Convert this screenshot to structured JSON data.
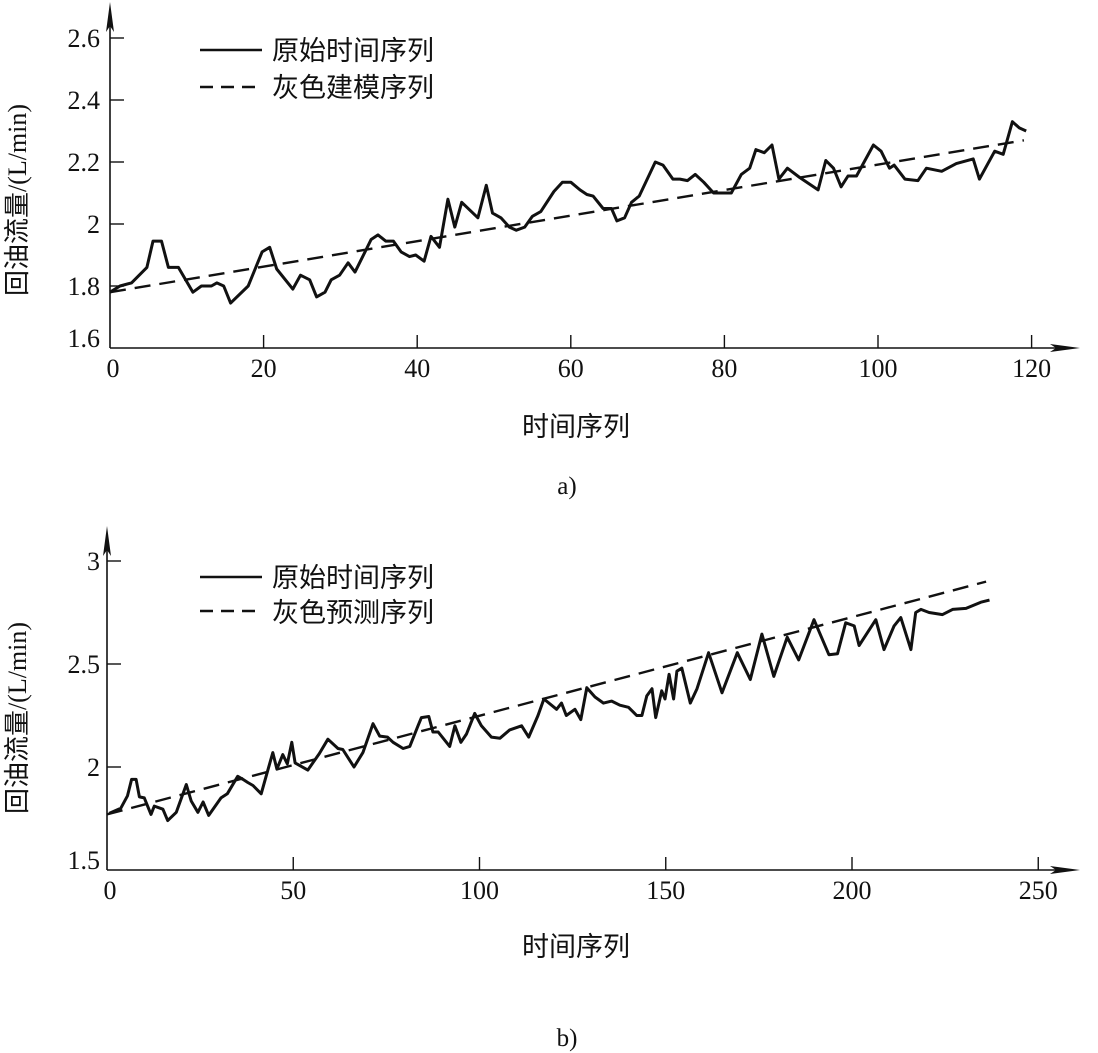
{
  "chart_data": [
    {
      "id": "a",
      "type": "line",
      "caption": "a)",
      "xlabel": "时间序列",
      "ylabel": "回油流量/(L/min)",
      "xlim": [
        0,
        120
      ],
      "ylim": [
        1.6,
        2.6
      ],
      "xticks": [
        0,
        20,
        40,
        60,
        80,
        100,
        120
      ],
      "yticks": [
        1.6,
        1.8,
        2.0,
        2.2,
        2.4,
        2.6
      ],
      "xtick_labels": [
        "0",
        "20",
        "40",
        "60",
        "80",
        "100",
        "120"
      ],
      "ytick_labels": [
        "1.6",
        "1.8",
        "2",
        "2.2",
        "2.4",
        "2.6"
      ],
      "legend_position": "top-left",
      "series": [
        {
          "name": "原始时间序列",
          "style": "solid",
          "x": [
            0,
            1.3,
            2.8,
            4.8,
            5.6,
            6.7,
            7.6,
            8.9,
            10.8,
            11.9,
            13.2,
            13.9,
            14.8,
            15.7,
            18,
            19.8,
            20.8,
            21.7,
            23.8,
            24.8,
            26,
            26.9,
            28,
            28.8,
            29.9,
            31,
            31.9,
            32.9,
            34,
            34.9,
            35.9,
            36.9,
            37.9,
            39,
            39.8,
            40.9,
            41.8,
            42.9,
            44,
            44.9,
            45.8,
            47.9,
            49,
            49.8,
            50.9,
            52,
            52.9,
            54,
            55,
            56.1,
            57.8,
            58.9,
            60,
            61.2,
            62.1,
            62.9,
            64.2,
            65.3,
            66,
            67,
            67.9,
            68.9,
            71,
            72,
            73.3,
            74.2,
            75.2,
            76.2,
            77.3,
            78.6,
            79.6,
            80.9,
            82.2,
            83.3,
            84.1,
            85.2,
            86.2,
            87.1,
            88.2,
            89.8,
            92.2,
            93.2,
            94.2,
            95.2,
            96.1,
            97.2,
            99.4,
            100.4,
            101.5,
            102.1,
            103.5,
            105.2,
            106.3,
            108.3,
            110.2,
            112.4,
            113.2,
            115.2,
            116.3,
            117.5,
            118.4,
            119.3
          ],
          "y": [
            1.78,
            1.8,
            1.81,
            1.86,
            1.945,
            1.945,
            1.86,
            1.86,
            1.78,
            1.8,
            1.8,
            1.81,
            1.8,
            1.745,
            1.8,
            1.91,
            1.925,
            1.855,
            1.79,
            1.835,
            1.82,
            1.765,
            1.78,
            1.82,
            1.835,
            1.875,
            1.845,
            1.895,
            1.95,
            1.965,
            1.945,
            1.945,
            1.91,
            1.895,
            1.9,
            1.88,
            1.96,
            1.925,
            2.08,
            1.99,
            2.07,
            2.02,
            2.125,
            2.035,
            2.02,
            1.99,
            1.98,
            1.99,
            2.025,
            2.04,
            2.105,
            2.135,
            2.135,
            2.11,
            2.095,
            2.09,
            2.05,
            2.05,
            2.01,
            2.02,
            2.07,
            2.09,
            2.2,
            2.19,
            2.145,
            2.145,
            2.14,
            2.16,
            2.135,
            2.1,
            2.1,
            2.1,
            2.16,
            2.18,
            2.24,
            2.23,
            2.255,
            2.145,
            2.18,
            2.15,
            2.11,
            2.205,
            2.18,
            2.12,
            2.155,
            2.155,
            2.255,
            2.235,
            2.18,
            2.19,
            2.145,
            2.14,
            2.18,
            2.17,
            2.195,
            2.21,
            2.145,
            2.235,
            2.225,
            2.33,
            2.31,
            2.3
          ]
        },
        {
          "name": "灰色建模序列",
          "style": "dashed",
          "x": [
            0,
            119
          ],
          "y": [
            1.78,
            2.27
          ]
        }
      ]
    },
    {
      "id": "b",
      "type": "line",
      "caption": "b)",
      "xlabel": "时间序列",
      "ylabel": "回油流量/(L/min)",
      "xlim": [
        0,
        250
      ],
      "ylim": [
        1.5,
        3.0
      ],
      "xticks": [
        0,
        50,
        100,
        150,
        200,
        250
      ],
      "yticks": [
        1.5,
        2.0,
        2.5,
        3.0
      ],
      "xtick_labels": [
        "0",
        "50",
        "100",
        "150",
        "200",
        "250"
      ],
      "ytick_labels": [
        "1.5",
        "2",
        "2.5",
        "3"
      ],
      "legend_position": "top-left",
      "series": [
        {
          "name": "原始时间序列",
          "style": "solid",
          "x": [
            0.6,
            3.7,
            5.5,
            6.6,
            7.8,
            8.7,
            10,
            11.8,
            12.7,
            15,
            16.3,
            18.6,
            21.3,
            22.6,
            24.4,
            25.8,
            27.3,
            30.6,
            32.3,
            35.1,
            36.5,
            37.8,
            39.2,
            41.4,
            42.7,
            44.5,
            45.6,
            47.2,
            48.4,
            49.6,
            50.5,
            53.9,
            57,
            59.3,
            62,
            63.3,
            66.3,
            68.7,
            71.4,
            73.2,
            75.3,
            76.8,
            79.5,
            81.3,
            83.5,
            84.4,
            86.4,
            87.5,
            88.9,
            92,
            93.4,
            95,
            96.5,
            98.7,
            100.5,
            103.2,
            105.5,
            108.1,
            111.3,
            113.2,
            115.7,
            117.3,
            120.7,
            122,
            123.3,
            125.6,
            127.2,
            128.8,
            131,
            133.3,
            135.5,
            137.7,
            140,
            142.2,
            143.6,
            144.9,
            146.3,
            147.3,
            148.9,
            149.8,
            150.9,
            152.1,
            153,
            154.3,
            156.6,
            158.4,
            161.5,
            165.1,
            169.2,
            172.7,
            175.8,
            179,
            182.6,
            185.7,
            189.8,
            193.8,
            196.1,
            198.3,
            200.6,
            201.9,
            206.4,
            208.6,
            211.3,
            213.1,
            215.8,
            217.1,
            218.5,
            220.7,
            224.3,
            227,
            230.6,
            234.6,
            236.9
          ],
          "y": [
            1.775,
            1.8,
            1.86,
            1.94,
            1.94,
            1.855,
            1.85,
            1.77,
            1.81,
            1.795,
            1.74,
            1.78,
            1.915,
            1.835,
            1.78,
            1.83,
            1.765,
            1.85,
            1.87,
            1.955,
            1.94,
            1.925,
            1.91,
            1.87,
            1.955,
            2.07,
            1.99,
            2.06,
            2.015,
            2.12,
            2.02,
            1.985,
            2.065,
            2.135,
            2.09,
            2.085,
            2.0,
            2.07,
            2.21,
            2.15,
            2.145,
            2.12,
            2.09,
            2.1,
            2.2,
            2.24,
            2.245,
            2.17,
            2.17,
            2.1,
            2.2,
            2.12,
            2.16,
            2.26,
            2.2,
            2.145,
            2.14,
            2.18,
            2.2,
            2.145,
            2.25,
            2.33,
            2.28,
            2.31,
            2.25,
            2.28,
            2.23,
            2.385,
            2.34,
            2.31,
            2.32,
            2.3,
            2.29,
            2.25,
            2.25,
            2.345,
            2.38,
            2.24,
            2.37,
            2.33,
            2.45,
            2.33,
            2.465,
            2.48,
            2.31,
            2.38,
            2.555,
            2.36,
            2.555,
            2.425,
            2.645,
            2.44,
            2.63,
            2.52,
            2.715,
            2.545,
            2.55,
            2.7,
            2.685,
            2.59,
            2.715,
            2.57,
            2.685,
            2.725,
            2.57,
            2.75,
            2.765,
            2.75,
            2.74,
            2.765,
            2.77,
            2.8,
            2.81
          ]
        },
        {
          "name": "灰色预测序列",
          "style": "dashed",
          "x": [
            0,
            236
          ],
          "y": [
            1.77,
            2.9
          ]
        }
      ]
    }
  ]
}
